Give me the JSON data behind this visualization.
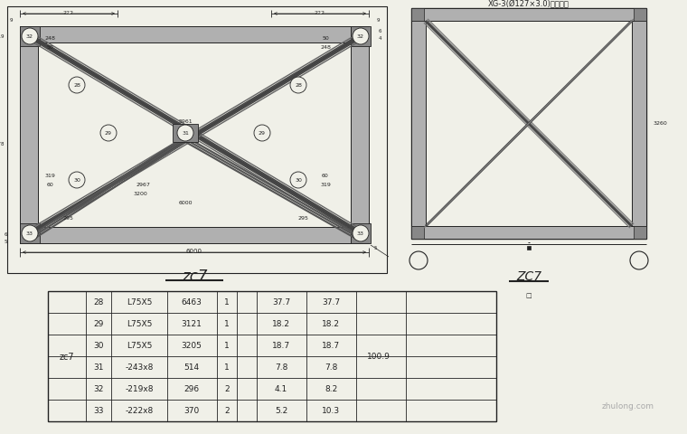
{
  "bg_color": "#f0f0e8",
  "line_color": "#222222",
  "gray_fill": "#b0b0b0",
  "dark_fill": "#555555",
  "mid_fill": "#888888",
  "table_data": [
    [
      "28",
      "L75X5",
      "6463",
      "1",
      "",
      "37.7",
      "37.7"
    ],
    [
      "29",
      "L75X5",
      "3121",
      "1",
      "",
      "18.2",
      "18.2"
    ],
    [
      "30",
      "L75X5",
      "3205",
      "1",
      "",
      "18.7",
      "18.7"
    ],
    [
      "31",
      "-243x8",
      "514",
      "1",
      "",
      "7.8",
      "7.8"
    ],
    [
      "32",
      "-219x8",
      "296",
      "2",
      "",
      "4.1",
      "8.2"
    ],
    [
      "33",
      "-222x8",
      "370",
      "2",
      "",
      "5.2",
      "10.3"
    ]
  ],
  "table_total": "100.9",
  "table_group": "zc7",
  "label_zc7_left": "zc7",
  "label_zc7_right": "ZC7",
  "label_xg": "XG-3(Ø127×3.0)策德兴入",
  "watermark": "zhulong.com",
  "fig_w": 7.6,
  "fig_h": 4.81,
  "dpi": 100
}
